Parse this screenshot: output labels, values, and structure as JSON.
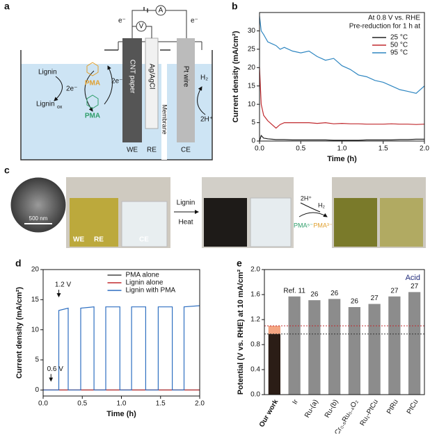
{
  "panel_a": {
    "label": "a",
    "lignin": "Lignin",
    "lignin_ox": "Lignin",
    "lignin_ox_sub": "ox",
    "e_left": "2e⁻",
    "e_right": "2e⁻",
    "pma_ox": "PMA",
    "pma_red": "PMA",
    "we_electrode": "CNT paper",
    "re_electrode": "Ag/AgCl",
    "membrane": "Membrane",
    "ce_electrode": "Pt wire",
    "h2": "H₂",
    "h_plus": "2H⁺",
    "we": "WE",
    "re": "RE",
    "ce": "CE",
    "e_out": "e⁻",
    "e_in": "e⁻",
    "voltmeter": "V",
    "ammeter": "A"
  },
  "panel_c": {
    "label": "c",
    "scale_bar": "500 nm",
    "we": "WE",
    "re": "RE",
    "ce": "CE",
    "step_1": "Lignin",
    "step_2": "Heat",
    "h_plus": "2H⁺",
    "h2": "H₂",
    "pma_reduced": "PMA⁵⁻",
    "pma_oxidized": "PMA³⁻"
  },
  "chart_data": [
    {
      "type": "line",
      "panel_label": "b",
      "xlabel": "Time (h)",
      "ylabel": "Current density (mA/cm²)",
      "legend_title": [
        "At 0.8 V vs. RHE",
        "Pre-reduction for 1 h at"
      ],
      "legend": "upper right",
      "x": [
        0,
        0.02,
        0.05,
        0.1,
        0.15,
        0.2,
        0.25,
        0.3,
        0.4,
        0.5,
        0.6,
        0.7,
        0.8,
        0.9,
        1.0,
        1.1,
        1.2,
        1.3,
        1.4,
        1.5,
        1.6,
        1.7,
        1.8,
        1.9,
        2.0
      ],
      "series": [
        {
          "name": "25 °C",
          "color": "#222222",
          "values": [
            0,
            1.5,
            0.8,
            0.6,
            0.5,
            0.4,
            0.4,
            0.4,
            0.3,
            0.3,
            0.3,
            0.3,
            0.3,
            0.2,
            0.2,
            0.2,
            0.2,
            0.3,
            0.3,
            0.3,
            0.3,
            0.4,
            0.4,
            0.5,
            0.5
          ]
        },
        {
          "name": "50 °C",
          "color": "#c0282d",
          "values": [
            20,
            10,
            7,
            5.5,
            4.5,
            3.5,
            4.5,
            5,
            5,
            5,
            5,
            4.8,
            5,
            4.7,
            4.8,
            4.7,
            4.7,
            4.6,
            4.6,
            4.6,
            4.7,
            4.6,
            4.6,
            4.5,
            4.6
          ]
        },
        {
          "name": "95 °C",
          "color": "#2e86c1",
          "values": [
            34,
            30,
            29,
            27,
            26.5,
            26,
            25,
            25.5,
            24.5,
            24,
            24.5,
            23,
            22,
            22.5,
            20.5,
            19.5,
            18,
            17.5,
            16.5,
            16,
            15,
            14,
            13.5,
            13,
            15
          ]
        }
      ],
      "xlim": [
        0,
        2.0
      ],
      "xticks": [
        {
          "value": 0,
          "label": "0.0"
        },
        0.5,
        {
          "value": 1,
          "label": "1.0"
        },
        1.5,
        {
          "value": 2,
          "label": "2.0"
        }
      ],
      "ylim": [
        0,
        35
      ],
      "yticks": [
        0,
        5,
        10,
        15,
        20,
        25,
        30
      ]
    },
    {
      "type": "line",
      "panel_label": "d",
      "xlabel": "Time (h)",
      "ylabel": "Current density (mA/cm²)",
      "legend": "upper center",
      "annotations": [
        "1.2 V",
        "0.6 V"
      ],
      "series": [
        {
          "name": "PMA alone",
          "color": "#444444",
          "x": [
            0,
            2.0
          ],
          "values": [
            0,
            0
          ]
        },
        {
          "name": "Lignin alone",
          "color": "#c0282d",
          "x": [
            0,
            2.0
          ],
          "values": [
            0,
            0
          ]
        },
        {
          "name": "Lignin with PMA",
          "color": "#2e6fc1",
          "x": [
            0,
            0.2,
            0.2,
            0.32,
            0.32,
            0.48,
            0.48,
            0.65,
            0.65,
            0.8,
            0.8,
            0.98,
            0.98,
            1.13,
            1.13,
            1.31,
            1.31,
            1.47,
            1.47,
            1.65,
            1.65,
            1.8,
            1.8,
            2.0
          ],
          "values": [
            0,
            0,
            13.2,
            13.6,
            0,
            0,
            13.6,
            13.8,
            0,
            0,
            13.8,
            13.8,
            0,
            0,
            13.8,
            13.8,
            0,
            0,
            13.8,
            13.8,
            0,
            0,
            13.8,
            14
          ]
        }
      ],
      "xlim": [
        0,
        2.0
      ],
      "xticks": [
        {
          "value": 0,
          "label": "0.0"
        },
        0.5,
        {
          "value": 1,
          "label": "1.0"
        },
        1.5,
        {
          "value": 2,
          "label": "2.0"
        }
      ],
      "ylim": [
        -1,
        20
      ],
      "yticks": [
        0,
        5,
        10,
        15,
        20
      ]
    },
    {
      "type": "bar",
      "panel_label": "e",
      "ylabel": "Potential (V vs. RHE) at 10 mA/cm²",
      "annotation": "Acid",
      "categories": [
        "Our work",
        "Ir",
        "Ru-(a)",
        "Ru-(b)",
        "Cr₀.₆Ru₀.₄O₂",
        "Ru₁-PtCu",
        "PtRu",
        "PtCu"
      ],
      "values": [
        0.97,
        1.57,
        1.51,
        1.53,
        1.4,
        1.45,
        1.57,
        1.64
      ],
      "colors": [
        "#2b1d16",
        "#8c8c8c",
        "#8c8c8c",
        "#8c8c8c",
        "#8c8c8c",
        "#8c8c8c",
        "#8c8c8c",
        "#8c8c8c"
      ],
      "ref_labels": [
        null,
        "Ref. 11",
        "26",
        "26",
        "26",
        "27",
        "27",
        "27"
      ],
      "highlight": {
        "value": 1.1,
        "color": "#f4a582"
      },
      "ylim": [
        0,
        2.0
      ],
      "yticks": [
        {
          "value": 0,
          "label": "0.0"
        },
        0.4,
        0.8,
        1.2,
        1.6,
        {
          "value": 2,
          "label": "2.0"
        }
      ]
    }
  ]
}
